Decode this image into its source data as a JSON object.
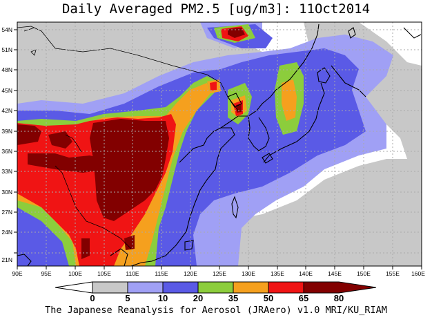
{
  "title": "Daily Averaged PM2.5 [ug/m3]: 11Oct2014",
  "caption": "The Japanese Reanalysis for Aerosol (JRAero) v1.0 MRI/KU_RIAM",
  "map": {
    "lon_labels": [
      "90E",
      "95E",
      "100E",
      "105E",
      "110E",
      "115E",
      "120E",
      "125E",
      "130E",
      "135E",
      "140E",
      "145E",
      "150E",
      "155E",
      "160E"
    ],
    "lat_labels": [
      "54N",
      "51N",
      "48N",
      "45N",
      "42N",
      "39N",
      "36N",
      "33N",
      "30N",
      "27N",
      "24N",
      "21N"
    ]
  },
  "colorbar": {
    "labels": [
      "0",
      "5",
      "10",
      "20",
      "35",
      "50",
      "65",
      "80"
    ],
    "colors": [
      "#ffffff",
      "#c8c8c8",
      "#a0a0f5",
      "#5a5ae6",
      "#8ccd3c",
      "#f5a01e",
      "#f01414",
      "#820000"
    ]
  },
  "colors": {
    "ocean": "#ffffff",
    "grid": "#aaaaaa"
  }
}
